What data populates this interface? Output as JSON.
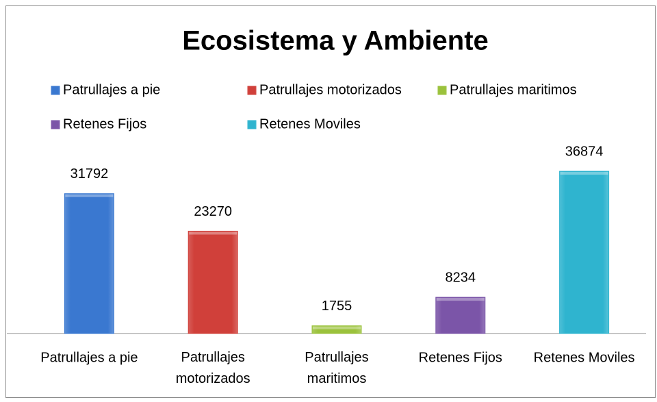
{
  "chart_data": {
    "type": "bar",
    "title": "Ecosistema y Ambiente",
    "categories": [
      "Patrullajes a pie",
      "Patrullajes motorizados",
      "Patrullajes maritimos",
      "Retenes Fijos",
      "Retenes Moviles"
    ],
    "values": [
      31792,
      23270,
      1755,
      8234,
      36874
    ],
    "colors": [
      "#3a78d0",
      "#d0403a",
      "#9bc23c",
      "#7b55a8",
      "#2fb4cf"
    ],
    "ylim": [
      0,
      40000
    ],
    "legend": "top"
  }
}
